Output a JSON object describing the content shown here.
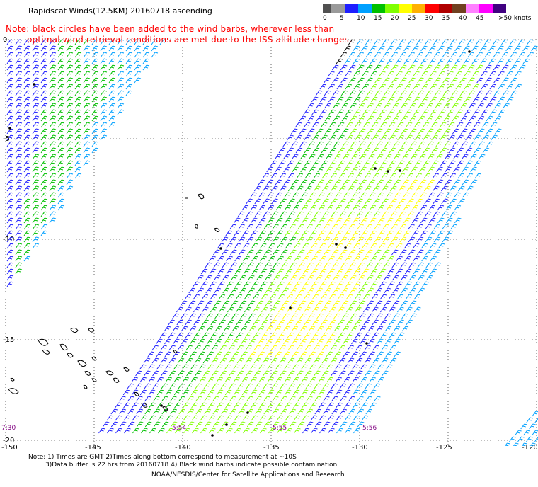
{
  "title": "Rapidscat Winds(12.5KM) 20160718 ascending",
  "note": {
    "line1": "Note: black circles have been added to the wind barbs, wherever less than",
    "line2": "optimal wind retrieval conditions are met due to the ISS altitude changes."
  },
  "scale": {
    "colors": [
      "#505050",
      "#9a9a9a",
      "#1e1eff",
      "#00a0ff",
      "#00c000",
      "#80ff00",
      "#ffff00",
      "#ffb000",
      "#ff0000",
      "#b00000",
      "#704020",
      "#ff80ff",
      "#ff00ff",
      "#400080"
    ],
    "labels": [
      "0",
      "5",
      "10",
      "15",
      "20",
      "25",
      "30",
      "35",
      "40",
      "45",
      ">50 knots"
    ]
  },
  "axes": {
    "lat_labels": [
      "0",
      "-5",
      "-10",
      "-15",
      "-20"
    ],
    "lon_labels": [
      "-150",
      "-145",
      "-140",
      "-135",
      "-130",
      "-125",
      "-120"
    ]
  },
  "times": [
    "7:30",
    "5:54",
    "5:55",
    "5:56"
  ],
  "footer": {
    "line1": "Note: 1) Times are GMT 2)Times along bottom correspond to measurement at ~10S",
    "line2": "3)Data buffer is 22 hrs from 20160718 4) Black wind barbs indicate possible contamination",
    "line3": "NOAA/NESDIS/Center for Satellite Applications and Research"
  }
}
